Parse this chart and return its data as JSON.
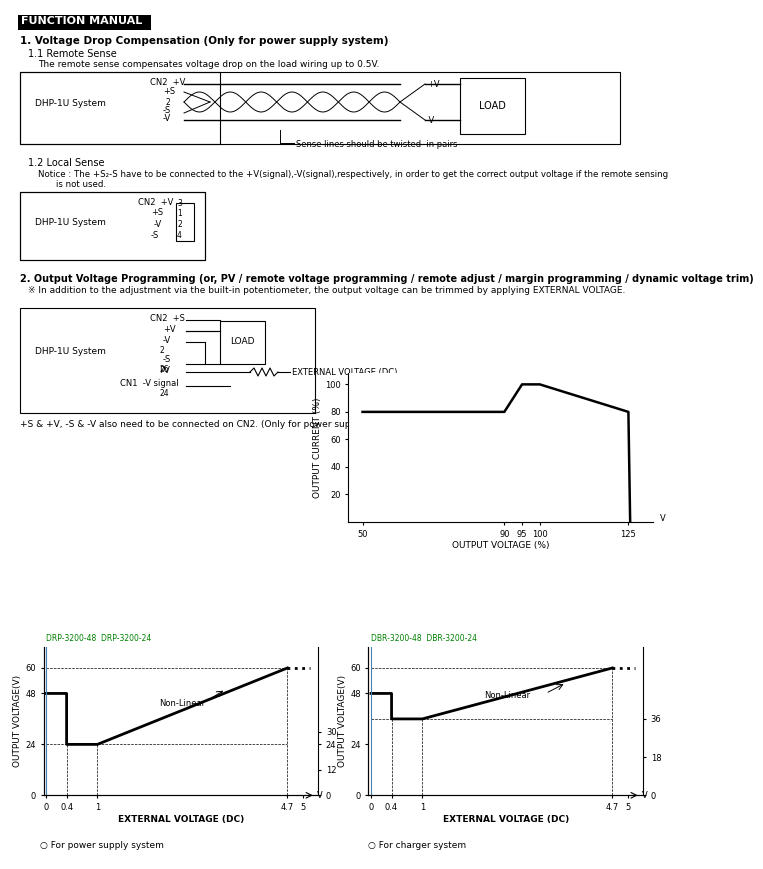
{
  "bg_color": "#ffffff",
  "header_text": "FUNCTION MANUAL",
  "section1_title": "1. Voltage Drop Compensation (Only for power supply system)",
  "section1_1_title": "1.1 Remote Sense",
  "section1_1_text": "The remote sense compensates voltage drop on the load wiring up to 0.5V.",
  "section1_2_title": "1.2 Local Sense",
  "section1_2_notice": "Notice : The +S₂-S have to be connected to the +V(signal),-V(signal),respectively, in order to get the correct output voltage if the remote sensing\n         is not used.",
  "section2_title": "2. Output Voltage Programming (or, PV / remote voltage programming / remote adjust / margin programming / dynamic voltage trim)",
  "section2_sub": "※ In addition to the adjustment via the built-in potentiometer, the output voltage can be trimmed by applying EXTERNAL VOLTAGE.",
  "section2_note": "+S & +V, -S & -V also need to be connected on CN2. (Only for power supply system)",
  "graph_xlabel": "OUTPUT VOLTAGE (%)",
  "graph_ylabel": "OUTPUT CURRENT (%)",
  "graph1_xlabel": "EXTERNAL VOLTAGE (DC)",
  "graph1_ylabel": "OUTPUT VOLTAGE(V)",
  "graph1_label1": "For power supply system",
  "graph1_label2": "For charger system",
  "graph1_title_left": "DRP-3200-48  DRP-3200-24",
  "graph1_title_right": "DBR-3200-48  DBR-3200-24"
}
